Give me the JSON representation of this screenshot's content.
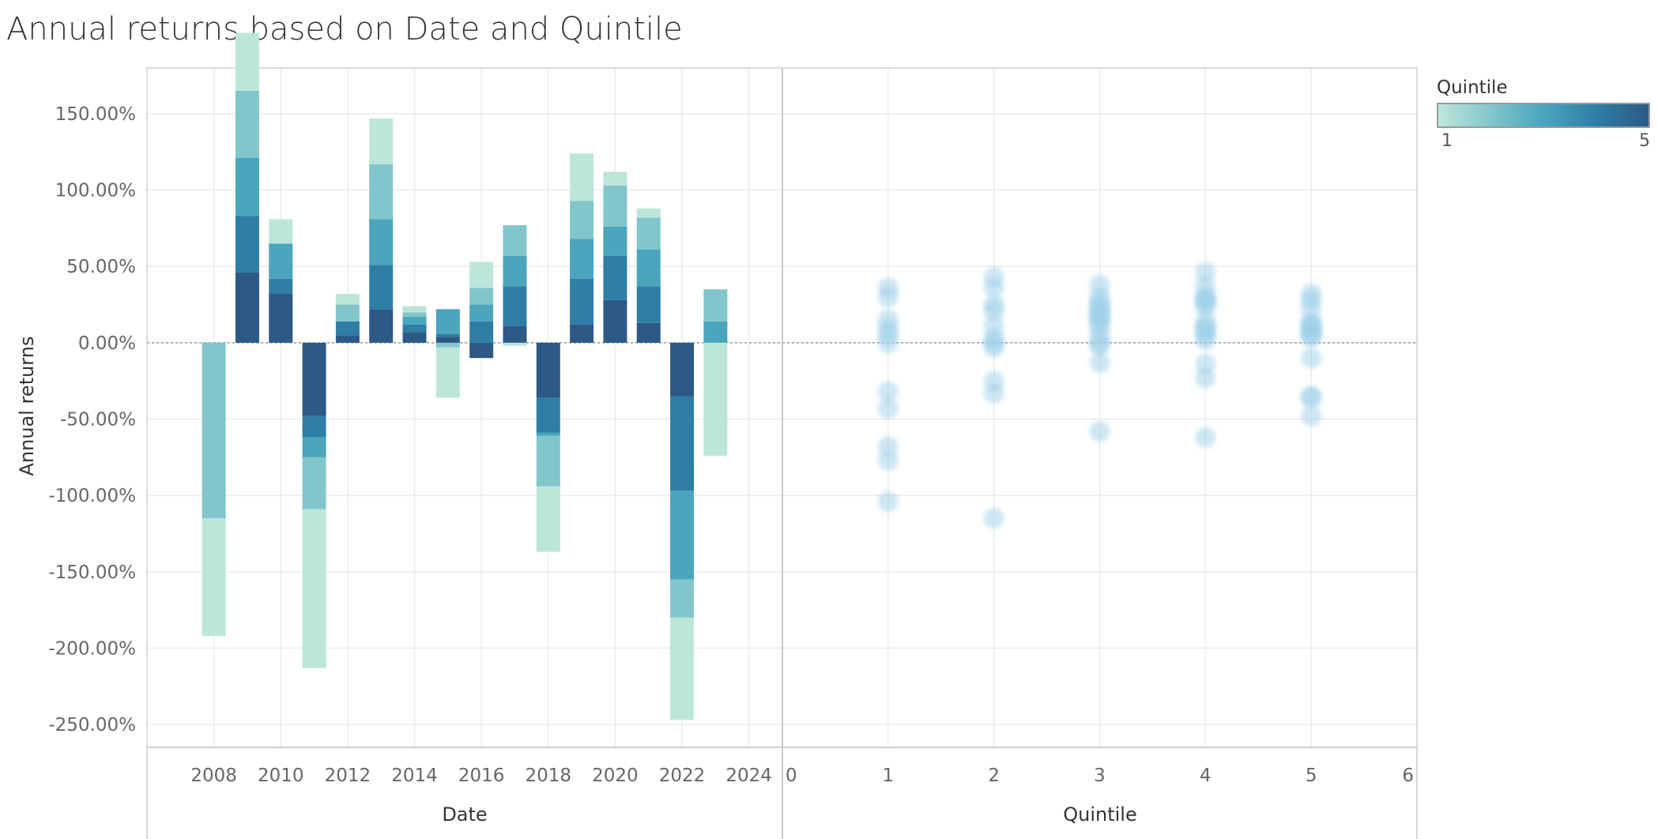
{
  "title": "Annual returns based on Date and Quintile",
  "legend": {
    "title": "Quintile",
    "min_label": "1",
    "max_label": "5",
    "colors": [
      "#bde6da",
      "#82c6cb",
      "#4aa5bd",
      "#2f7ea6",
      "#2c5985"
    ]
  },
  "chart_data": [
    {
      "type": "bar",
      "stacked": true,
      "xlabel": "Date",
      "ylabel": "Annual returns",
      "x_ticks": [
        "2008",
        "2010",
        "2012",
        "2014",
        "2016",
        "2018",
        "2020",
        "2022",
        "2024"
      ],
      "y_ticks": [
        "150.00%",
        "100.00%",
        "50.00%",
        "0.00%",
        "-50.00%",
        "-100.00%",
        "-150.00%",
        "-200.00%",
        "-250.00%"
      ],
      "ylim": [
        -265,
        180
      ],
      "xlim": [
        2006,
        2025
      ],
      "color_by": "Quintile",
      "categories": [
        2008,
        2009,
        2010,
        2011,
        2012,
        2013,
        2014,
        2015,
        2016,
        2017,
        2018,
        2019,
        2020,
        2021,
        2022,
        2023
      ],
      "series": [
        {
          "name": "1",
          "values": [
            -77,
            38,
            16,
            -104,
            7,
            30,
            4,
            -33,
            17,
            -2,
            -43,
            31,
            9,
            6,
            -67,
            -74
          ]
        },
        {
          "name": "2",
          "values": [
            -115,
            44,
            0,
            -34,
            11,
            36,
            3,
            -3,
            11,
            20,
            -33,
            25,
            27,
            21,
            -25,
            21
          ]
        },
        {
          "name": "3",
          "values": [
            0,
            38,
            23,
            -13,
            0,
            30,
            5,
            16,
            11,
            20,
            -2,
            26,
            19,
            24,
            -58,
            14
          ]
        },
        {
          "name": "4",
          "values": [
            0,
            37,
            10,
            -14,
            9,
            29,
            5,
            2,
            14,
            26,
            -23,
            30,
            29,
            24,
            -62,
            0
          ]
        },
        {
          "name": "5",
          "values": [
            0,
            46,
            32,
            -48,
            5,
            22,
            7,
            4,
            -10,
            11,
            -36,
            12,
            28,
            13,
            -35,
            0
          ]
        }
      ]
    },
    {
      "type": "scatter",
      "xlabel": "Quintile",
      "ylabel": "Annual returns",
      "x_ticks": [
        "0",
        "1",
        "2",
        "3",
        "4",
        "5",
        "6"
      ],
      "xlim": [
        0,
        6
      ],
      "ylim": [
        -265,
        180
      ],
      "points": [
        {
          "x": 1,
          "y": 36
        },
        {
          "x": 1,
          "y": 30
        },
        {
          "x": 1,
          "y": 15
        },
        {
          "x": 1,
          "y": 9
        },
        {
          "x": 1,
          "y": 5
        },
        {
          "x": 1,
          "y": 0
        },
        {
          "x": 1,
          "y": -32
        },
        {
          "x": 1,
          "y": -43
        },
        {
          "x": 1,
          "y": -68
        },
        {
          "x": 1,
          "y": -77
        },
        {
          "x": 1,
          "y": -104
        },
        {
          "x": 2,
          "y": 43
        },
        {
          "x": 2,
          "y": 36
        },
        {
          "x": 2,
          "y": 25
        },
        {
          "x": 2,
          "y": 21
        },
        {
          "x": 2,
          "y": 11
        },
        {
          "x": 2,
          "y": 3
        },
        {
          "x": 2,
          "y": 0
        },
        {
          "x": 2,
          "y": -3
        },
        {
          "x": 2,
          "y": -25
        },
        {
          "x": 2,
          "y": -33
        },
        {
          "x": 2,
          "y": -115
        },
        {
          "x": 3,
          "y": 38
        },
        {
          "x": 3,
          "y": 30
        },
        {
          "x": 3,
          "y": 26
        },
        {
          "x": 3,
          "y": 24
        },
        {
          "x": 3,
          "y": 20
        },
        {
          "x": 3,
          "y": 19
        },
        {
          "x": 3,
          "y": 16
        },
        {
          "x": 3,
          "y": 14
        },
        {
          "x": 3,
          "y": 11
        },
        {
          "x": 3,
          "y": 5
        },
        {
          "x": 3,
          "y": 0
        },
        {
          "x": 3,
          "y": -2
        },
        {
          "x": 3,
          "y": -13
        },
        {
          "x": 3,
          "y": -58
        },
        {
          "x": 4,
          "y": 46
        },
        {
          "x": 4,
          "y": 37
        },
        {
          "x": 4,
          "y": 30
        },
        {
          "x": 4,
          "y": 29
        },
        {
          "x": 4,
          "y": 26
        },
        {
          "x": 4,
          "y": 24
        },
        {
          "x": 4,
          "y": 14
        },
        {
          "x": 4,
          "y": 10
        },
        {
          "x": 4,
          "y": 9
        },
        {
          "x": 4,
          "y": 5
        },
        {
          "x": 4,
          "y": 2
        },
        {
          "x": 4,
          "y": -14
        },
        {
          "x": 4,
          "y": -23
        },
        {
          "x": 4,
          "y": -62
        },
        {
          "x": 5,
          "y": 32
        },
        {
          "x": 5,
          "y": 28
        },
        {
          "x": 5,
          "y": 22
        },
        {
          "x": 5,
          "y": 13
        },
        {
          "x": 5,
          "y": 12
        },
        {
          "x": 5,
          "y": 11
        },
        {
          "x": 5,
          "y": 7
        },
        {
          "x": 5,
          "y": 5
        },
        {
          "x": 5,
          "y": 4
        },
        {
          "x": 5,
          "y": -10
        },
        {
          "x": 5,
          "y": -35
        },
        {
          "x": 5,
          "y": -36
        },
        {
          "x": 5,
          "y": -48
        }
      ],
      "marker_color": "#9dcfe9"
    }
  ]
}
